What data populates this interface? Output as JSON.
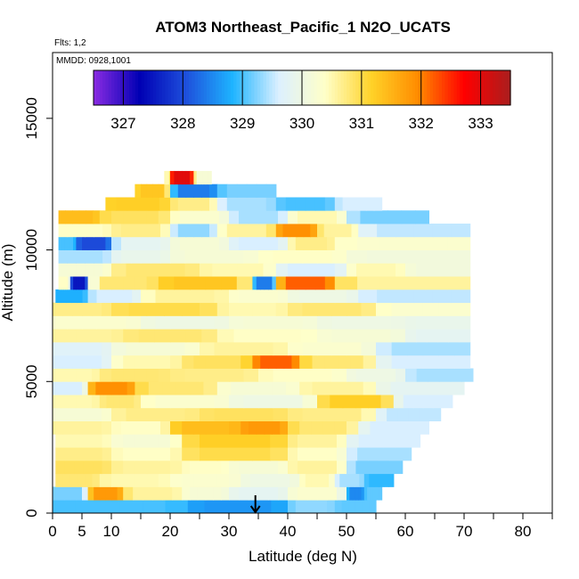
{
  "chart_data": {
    "type": "heatmap",
    "title": "ATOM3 Northeast_Pacific_1 N2O_UCATS",
    "flights_label": "Flts: 1,2",
    "dates_label": "MMDD: 0928,1001",
    "xlabel": "Latitude (deg N)",
    "ylabel": "Altitude (m)",
    "xlim": [
      0,
      85
    ],
    "ylim": [
      0,
      17500
    ],
    "x_ticks": [
      0,
      5,
      10,
      20,
      30,
      40,
      50,
      60,
      70,
      80
    ],
    "x_minor_ticks": [
      15,
      25,
      35,
      45,
      55,
      65,
      75,
      85
    ],
    "y_ticks": [
      0,
      5000,
      10000,
      15000
    ],
    "grid": false,
    "colorbar": {
      "min": 326.5,
      "max": 333.5,
      "ticks": [
        327,
        328,
        329,
        330,
        331,
        332,
        333
      ],
      "colors": [
        "#8a2be2",
        "#0000b4",
        "#1e50dc",
        "#1eb4ff",
        "#dcf0ff",
        "#ffffc8",
        "#ffd228",
        "#ff8c00",
        "#ff0000",
        "#aa1e1e"
      ]
    },
    "arrow_marker": {
      "x": 34.5,
      "y": 0
    },
    "layers": [
      {
        "y0": 0,
        "y1": 500,
        "x_max": 55,
        "segments": [
          [
            0,
            23,
            329.0
          ],
          [
            23,
            40,
            328.6
          ],
          [
            40,
            48,
            329.3
          ],
          [
            48,
            55,
            329.1
          ]
        ]
      },
      {
        "y0": 500,
        "y1": 1000,
        "x_max": 56,
        "segments": [
          [
            0,
            6,
            329.2
          ],
          [
            6,
            12,
            331.8
          ],
          [
            12,
            22,
            330.6
          ],
          [
            22,
            30,
            330.2
          ],
          [
            30,
            40,
            329.8
          ],
          [
            40,
            50,
            330.3
          ],
          [
            50,
            53,
            328.5
          ],
          [
            53,
            56,
            329.1
          ]
        ]
      },
      {
        "y0": 1000,
        "y1": 1500,
        "x_max": 58,
        "segments": [
          [
            0,
            8,
            330.8
          ],
          [
            8,
            20,
            330.5
          ],
          [
            20,
            32,
            330.3
          ],
          [
            32,
            42,
            330.0
          ],
          [
            42,
            48,
            330.5
          ],
          [
            48,
            53,
            329.4
          ],
          [
            53,
            58,
            328.9
          ]
        ]
      },
      {
        "y0": 1500,
        "y1": 2000,
        "x_max": 59.5,
        "segments": [
          [
            0,
            10,
            330.9
          ],
          [
            10,
            22,
            330.6
          ],
          [
            22,
            30,
            330.4
          ],
          [
            30,
            40,
            330.2
          ],
          [
            40,
            50,
            330.6
          ],
          [
            50,
            59.5,
            329.2
          ]
        ]
      },
      {
        "y0": 2000,
        "y1": 2500,
        "x_max": 61,
        "segments": [
          [
            0,
            10,
            330.7
          ],
          [
            10,
            22,
            330.4
          ],
          [
            22,
            40,
            331.0
          ],
          [
            40,
            50,
            330.4
          ],
          [
            50,
            61,
            329.4
          ]
        ]
      },
      {
        "y0": 2500,
        "y1": 3000,
        "x_max": 62.5,
        "segments": [
          [
            0,
            10,
            330.5
          ],
          [
            10,
            22,
            330.2
          ],
          [
            22,
            40,
            331.2
          ],
          [
            40,
            50,
            330.6
          ],
          [
            50,
            62.5,
            329.6
          ]
        ]
      },
      {
        "y0": 3000,
        "y1": 3500,
        "x_max": 64,
        "segments": [
          [
            0,
            10,
            330.6
          ],
          [
            10,
            20,
            330.4
          ],
          [
            20,
            32,
            331.4
          ],
          [
            32,
            40,
            331.8
          ],
          [
            40,
            52,
            330.8
          ],
          [
            52,
            64,
            329.6
          ]
        ]
      },
      {
        "y0": 3500,
        "y1": 4000,
        "x_max": 66,
        "segments": [
          [
            0,
            10,
            330.2
          ],
          [
            10,
            25,
            330.7
          ],
          [
            25,
            40,
            330.9
          ],
          [
            40,
            55,
            330.7
          ],
          [
            55,
            66,
            329.5
          ]
        ]
      },
      {
        "y0": 4000,
        "y1": 4500,
        "x_max": 68,
        "segments": [
          [
            0,
            8,
            330.5
          ],
          [
            8,
            15,
            330.8
          ],
          [
            15,
            30,
            330.3
          ],
          [
            30,
            45,
            330.0
          ],
          [
            45,
            58,
            331.2
          ],
          [
            58,
            68,
            329.6
          ]
        ]
      },
      {
        "y0": 4500,
        "y1": 5000,
        "x_max": 70,
        "segments": [
          [
            0,
            6,
            329.6
          ],
          [
            6,
            14,
            331.9
          ],
          [
            14,
            28,
            330.8
          ],
          [
            28,
            42,
            330.2
          ],
          [
            42,
            55,
            330.6
          ],
          [
            55,
            70,
            329.8
          ]
        ]
      },
      {
        "y0": 5000,
        "y1": 5500,
        "x_max": 71.5,
        "segments": [
          [
            0,
            8,
            330.5
          ],
          [
            8,
            20,
            330.8
          ],
          [
            20,
            35,
            330.7
          ],
          [
            35,
            50,
            330.4
          ],
          [
            50,
            60,
            330.0
          ],
          [
            60,
            71.5,
            329.4
          ]
        ]
      },
      {
        "y0": 5500,
        "y1": 6000,
        "x_max": 71,
        "segments": [
          [
            0,
            10,
            329.6
          ],
          [
            10,
            22,
            330.5
          ],
          [
            22,
            34,
            330.9
          ],
          [
            34,
            42,
            332.2
          ],
          [
            42,
            55,
            330.8
          ],
          [
            55,
            71,
            329.6
          ]
        ]
      },
      {
        "y0": 6000,
        "y1": 6500,
        "x_max": 71,
        "segments": [
          [
            0,
            10,
            329.7
          ],
          [
            10,
            25,
            330.2
          ],
          [
            25,
            40,
            330.6
          ],
          [
            40,
            55,
            330.3
          ],
          [
            55,
            71,
            329.4
          ]
        ]
      },
      {
        "y0": 6500,
        "y1": 7000,
        "x_max": 71,
        "segments": [
          [
            0,
            12,
            330.6
          ],
          [
            12,
            28,
            330.8
          ],
          [
            28,
            45,
            330.4
          ],
          [
            45,
            60,
            330.2
          ],
          [
            60,
            71,
            329.8
          ]
        ]
      },
      {
        "y0": 7000,
        "y1": 7500,
        "x_max": 71,
        "segments": [
          [
            0,
            15,
            330.3
          ],
          [
            15,
            30,
            330.0
          ],
          [
            30,
            45,
            330.2
          ],
          [
            45,
            60,
            330.0
          ],
          [
            60,
            71,
            329.9
          ]
        ]
      },
      {
        "y0": 7500,
        "y1": 8000,
        "x_max": 71,
        "segments": [
          [
            0,
            10,
            330.7
          ],
          [
            10,
            28,
            331.0
          ],
          [
            28,
            40,
            330.5
          ],
          [
            40,
            55,
            330.8
          ],
          [
            55,
            71,
            330.3
          ]
        ]
      },
      {
        "y0": 8000,
        "y1": 8500,
        "x_max": 71,
        "segments": [
          [
            0,
            6,
            328.8
          ],
          [
            6,
            15,
            329.6
          ],
          [
            15,
            30,
            330.6
          ],
          [
            30,
            40,
            330.3
          ],
          [
            40,
            52,
            330.0
          ],
          [
            52,
            71,
            329.5
          ]
        ]
      },
      {
        "y0": 8500,
        "y1": 9000,
        "x_max": 71,
        "segments": [
          [
            0,
            3,
            330.4
          ],
          [
            3,
            6,
            327.5
          ],
          [
            6,
            18,
            330.8
          ],
          [
            18,
            34,
            331.3
          ],
          [
            34,
            38,
            328.4
          ],
          [
            38,
            48,
            332.2
          ],
          [
            48,
            71,
            330.6
          ]
        ]
      },
      {
        "y0": 9000,
        "y1": 9500,
        "x_max": 71,
        "segments": [
          [
            0,
            10,
            330.2
          ],
          [
            10,
            25,
            330.8
          ],
          [
            25,
            38,
            330.5
          ],
          [
            38,
            50,
            329.6
          ],
          [
            50,
            60,
            330.5
          ],
          [
            60,
            71,
            330.1
          ]
        ]
      },
      {
        "y0": 9500,
        "y1": 10000,
        "x_max": 71,
        "segments": [
          [
            0,
            10,
            329.4
          ],
          [
            10,
            20,
            329.9
          ],
          [
            20,
            35,
            330.2
          ],
          [
            35,
            50,
            330.4
          ],
          [
            50,
            71,
            330.1
          ]
        ]
      },
      {
        "y0": 10000,
        "y1": 10500,
        "x_max": 71,
        "segments": [
          [
            0,
            4,
            329.0
          ],
          [
            4,
            10,
            328.0
          ],
          [
            10,
            20,
            329.8
          ],
          [
            20,
            30,
            330.2
          ],
          [
            30,
            40,
            329.6
          ],
          [
            40,
            48,
            330.7
          ],
          [
            48,
            71,
            330.3
          ]
        ]
      },
      {
        "y0": 10500,
        "y1": 11000,
        "x_max": 71,
        "segments": [
          [
            0,
            10,
            330.4
          ],
          [
            10,
            20,
            330.7
          ],
          [
            20,
            28,
            329.3
          ],
          [
            28,
            38,
            330.6
          ],
          [
            38,
            45,
            331.9
          ],
          [
            45,
            52,
            330.6
          ],
          [
            52,
            71,
            329.5
          ]
        ]
      },
      {
        "y0": 11000,
        "y1": 11500,
        "x_max": 64,
        "segments": [
          [
            0,
            8,
            331.4
          ],
          [
            8,
            20,
            330.9
          ],
          [
            20,
            30,
            330.3
          ],
          [
            30,
            40,
            329.4
          ],
          [
            40,
            50,
            330.5
          ],
          [
            50,
            64,
            329.2
          ]
        ]
      },
      {
        "y0": 11500,
        "y1": 12000,
        "x_max": 56,
        "segments": [
          [
            0,
            8,
            331.0
          ],
          [
            8,
            20,
            331.2
          ],
          [
            20,
            28,
            330.7
          ],
          [
            28,
            38,
            329.4
          ],
          [
            38,
            48,
            329.0
          ],
          [
            48,
            56,
            329.6
          ]
        ]
      },
      {
        "y0": 12000,
        "y1": 12500,
        "x_max": 38,
        "segments": [
          [
            0,
            10,
            330.5
          ],
          [
            10,
            20,
            331.3
          ],
          [
            20,
            28,
            328.4
          ],
          [
            28,
            38,
            329.2
          ]
        ]
      },
      {
        "y0": 12500,
        "y1": 13000,
        "x_max": 27,
        "segments": [
          [
            0,
            16,
            330.7
          ],
          [
            16,
            20,
            330.5
          ],
          [
            20,
            24,
            333.0
          ],
          [
            24,
            27,
            330.2
          ]
        ]
      }
    ],
    "layer_x_min": [
      0,
      0,
      0.5,
      0.5,
      0.5,
      0.5,
      0,
      0,
      0,
      0,
      0,
      0,
      0,
      0,
      0,
      0,
      0.5,
      1,
      1,
      1,
      1,
      1,
      1,
      1,
      1,
      1
    ],
    "layer_x_min_offset": [
      0,
      0,
      0,
      0,
      0,
      0,
      0,
      0,
      0,
      0,
      0,
      0,
      0,
      0,
      0,
      0,
      0,
      0,
      0,
      0,
      0,
      0,
      1,
      9,
      14,
      19
    ]
  }
}
